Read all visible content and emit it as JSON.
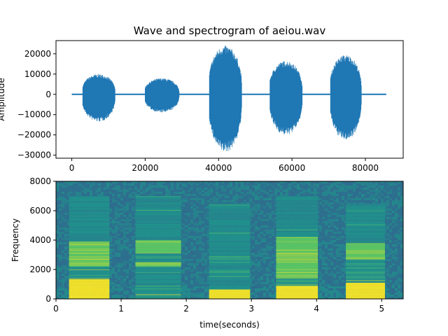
{
  "colors": {
    "wave": "#1f77b4",
    "spec_low": "#2d708e",
    "spec_mid": "#21918c",
    "spec_high": "#5ec962",
    "spec_peak": "#fde725"
  },
  "chart_data": [
    {
      "type": "line",
      "title": "Wave and spectrogram of aeiou.wav",
      "ylabel": "Amplitude",
      "xlabel": "",
      "xlim": [
        -4300,
        90300
      ],
      "ylim": [
        -31500,
        26500
      ],
      "xticks": [
        0,
        20000,
        40000,
        60000,
        80000
      ],
      "yticks": [
        -30000,
        -20000,
        -10000,
        0,
        10000,
        20000
      ],
      "series": [
        {
          "segments": [
            {
              "x0": 3000,
              "x1": 13500,
              "y_max": 10000,
              "y_min": -13500
            },
            {
              "x0": 20000,
              "x1": 31000,
              "y_max": 8000,
              "y_min": -9000
            },
            {
              "x0": 37500,
              "x1": 48000,
              "y_max": 24000,
              "y_min": -28500
            },
            {
              "x0": 54000,
              "x1": 64500,
              "y_max": 16500,
              "y_min": -20000
            },
            {
              "x0": 70500,
              "x1": 80500,
              "y_max": 19500,
              "y_min": -22500
            }
          ],
          "x_end": 85700
        }
      ]
    },
    {
      "type": "heatmap",
      "xlabel": "time(seconds)",
      "ylabel": "Frequency",
      "xlim": [
        0,
        5.33
      ],
      "ylim": [
        0,
        8000
      ],
      "xticks": [
        0,
        1,
        2,
        3,
        4,
        5
      ],
      "yticks": [
        0,
        2000,
        4000,
        6000,
        8000
      ],
      "vowels": [
        {
          "t0": 0.2,
          "t1": 0.82,
          "bands": [
            [
              0,
              1350,
              4
            ],
            [
              1350,
              2200,
              2
            ],
            [
              2200,
              2900,
              3
            ],
            [
              2900,
              3900,
              3
            ],
            [
              3900,
              7000,
              1
            ]
          ]
        },
        {
          "t0": 1.22,
          "t1": 1.92,
          "bands": [
            [
              0,
              900,
              2
            ],
            [
              900,
              2200,
              1
            ],
            [
              2200,
              2500,
              3
            ],
            [
              2500,
              3100,
              1
            ],
            [
              3100,
              4000,
              3
            ],
            [
              4000,
              7000,
              1
            ]
          ]
        },
        {
          "t0": 2.35,
          "t1": 2.98,
          "bands": [
            [
              0,
              650,
              4
            ],
            [
              650,
              2500,
              1
            ],
            [
              2500,
              3000,
              2
            ],
            [
              3000,
              3600,
              1
            ],
            [
              3600,
              6500,
              1
            ]
          ]
        },
        {
          "t0": 3.38,
          "t1": 4.02,
          "bands": [
            [
              0,
              900,
              4
            ],
            [
              900,
              1400,
              2
            ],
            [
              1400,
              2300,
              3
            ],
            [
              2300,
              3100,
              3
            ],
            [
              3100,
              4200,
              3
            ],
            [
              4200,
              7000,
              1
            ]
          ]
        },
        {
          "t0": 4.45,
          "t1": 5.05,
          "bands": [
            [
              0,
              1100,
              4
            ],
            [
              1100,
              2700,
              2
            ],
            [
              2700,
              3800,
              3
            ],
            [
              3800,
              6500,
              1
            ]
          ]
        }
      ]
    }
  ]
}
